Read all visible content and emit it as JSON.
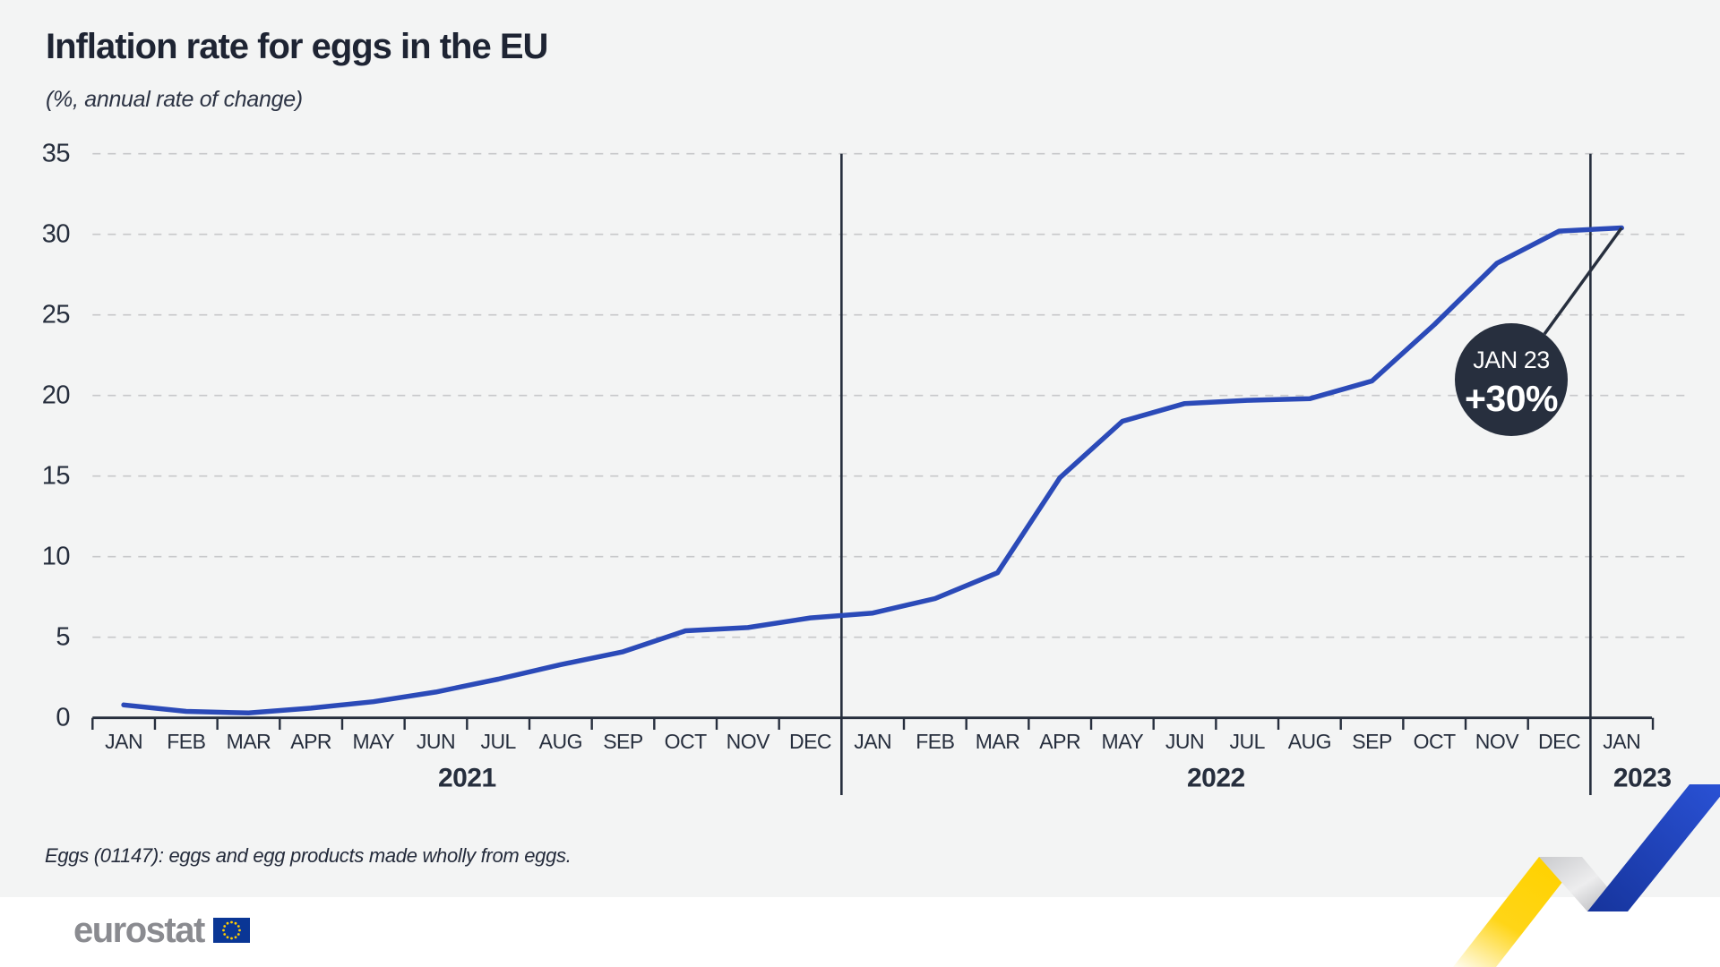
{
  "header": {
    "title": "Inflation rate for eggs in the EU",
    "subtitle": "(%, annual rate of change)"
  },
  "footnote": "Eggs (01147): eggs and egg products made wholly from eggs.",
  "logo": {
    "text": "eurostat"
  },
  "colors": {
    "background": "#f3f4f4",
    "bottom_band": "#ffffff",
    "line": "#2b4ab8",
    "grid": "#c7c8ca",
    "axis": "#262e3d",
    "annotation_fill": "#272f3e",
    "annotation_text": "#ffffff",
    "logo_gray": "#8a8b90",
    "flag_blue": "#0a3695",
    "flag_stars": "#ffcc00",
    "ribbon_yellow": "#ffd517",
    "ribbon_gray": "#b9babd",
    "ribbon_blue": "#2245bd"
  },
  "chart_data": {
    "type": "line",
    "title": "Inflation rate for eggs in the EU",
    "subtitle": "(%, annual rate of change)",
    "unit": "%",
    "x_months": [
      "JAN",
      "FEB",
      "MAR",
      "APR",
      "MAY",
      "JUN",
      "JUL",
      "AUG",
      "SEP",
      "OCT",
      "NOV",
      "DEC",
      "JAN",
      "FEB",
      "MAR",
      "APR",
      "MAY",
      "JUN",
      "JUL",
      "AUG",
      "SEP",
      "OCT",
      "NOV",
      "DEC",
      "JAN"
    ],
    "year_groups": [
      {
        "label": "2021",
        "months": 12
      },
      {
        "label": "2022",
        "months": 12
      },
      {
        "label": "2023",
        "months": 1
      }
    ],
    "series": [
      {
        "name": "Inflation rate for eggs, EU",
        "values": [
          0.8,
          0.4,
          0.3,
          0.6,
          1.0,
          1.6,
          2.4,
          3.3,
          4.1,
          5.4,
          5.6,
          6.2,
          6.5,
          7.4,
          9.0,
          14.9,
          18.4,
          19.5,
          19.7,
          19.8,
          20.9,
          24.4,
          28.2,
          30.2,
          30.4
        ]
      }
    ],
    "ylim": [
      0,
      35
    ],
    "yticks": [
      0,
      5,
      10,
      15,
      20,
      25,
      30,
      35
    ],
    "grid": "horizontal-dashed",
    "legend": "none",
    "annotation": {
      "label": "JAN 23",
      "value": "+30%",
      "month_index": 24
    }
  }
}
